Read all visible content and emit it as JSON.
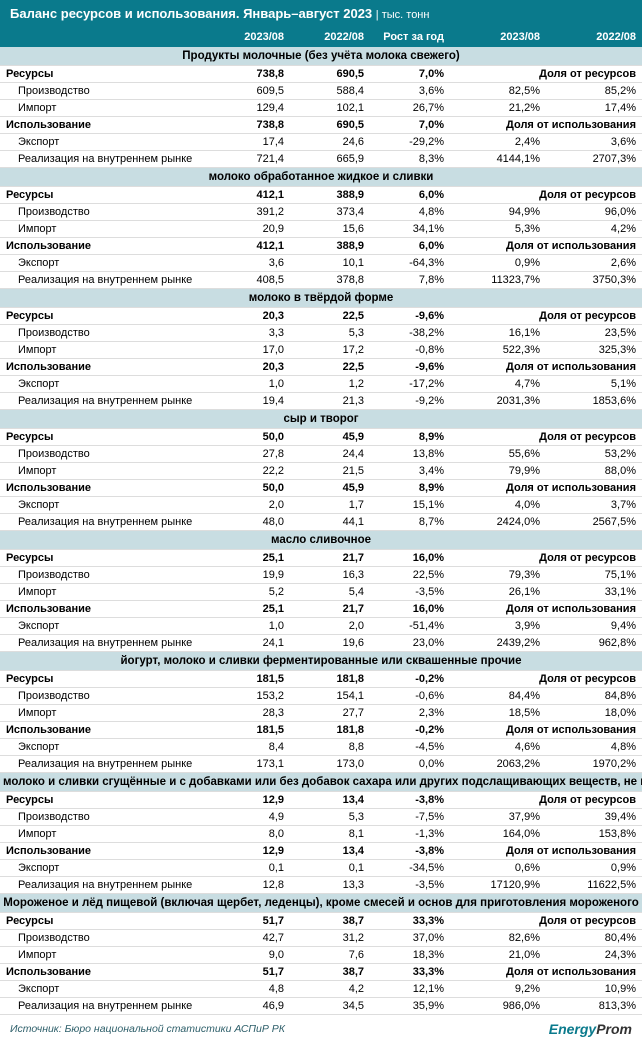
{
  "title": "Баланс ресурсов и использования. Январь–август 2023",
  "unit": "тыс. тонн",
  "cols": [
    "2023/08",
    "2022/08",
    "Рост за год",
    "2023/08",
    "2022/08"
  ],
  "share_res": "Доля от ресурсов",
  "share_use": "Доля от использования",
  "row_labels": {
    "res": "Ресурсы",
    "prod": "Производство",
    "imp": "Импорт",
    "use": "Использование",
    "exp": "Экспорт",
    "dom": "Реализация на внутреннем рынке"
  },
  "sections": [
    {
      "name": "Продукты молочные (без учёта молока свежего)",
      "res": [
        "738,8",
        "690,5",
        "7,0%"
      ],
      "prod": [
        "609,5",
        "588,4",
        "3,6%",
        "82,5%",
        "85,2%"
      ],
      "imp": [
        "129,4",
        "102,1",
        "26,7%",
        "21,2%",
        "17,4%"
      ],
      "use": [
        "738,8",
        "690,5",
        "7,0%"
      ],
      "exp": [
        "17,4",
        "24,6",
        "-29,2%",
        "2,4%",
        "3,6%"
      ],
      "dom": [
        "721,4",
        "665,9",
        "8,3%",
        "4144,1%",
        "2707,3%"
      ]
    },
    {
      "name": "молоко обработанное жидкое и сливки",
      "res": [
        "412,1",
        "388,9",
        "6,0%"
      ],
      "prod": [
        "391,2",
        "373,4",
        "4,8%",
        "94,9%",
        "96,0%"
      ],
      "imp": [
        "20,9",
        "15,6",
        "34,1%",
        "5,3%",
        "4,2%"
      ],
      "use": [
        "412,1",
        "388,9",
        "6,0%"
      ],
      "exp": [
        "3,6",
        "10,1",
        "-64,3%",
        "0,9%",
        "2,6%"
      ],
      "dom": [
        "408,5",
        "378,8",
        "7,8%",
        "11323,7%",
        "3750,3%"
      ]
    },
    {
      "name": "молоко в твёрдой форме",
      "res": [
        "20,3",
        "22,5",
        "-9,6%"
      ],
      "prod": [
        "3,3",
        "5,3",
        "-38,2%",
        "16,1%",
        "23,5%"
      ],
      "imp": [
        "17,0",
        "17,2",
        "-0,8%",
        "522,3%",
        "325,3%"
      ],
      "use": [
        "20,3",
        "22,5",
        "-9,6%"
      ],
      "exp": [
        "1,0",
        "1,2",
        "-17,2%",
        "4,7%",
        "5,1%"
      ],
      "dom": [
        "19,4",
        "21,3",
        "-9,2%",
        "2031,3%",
        "1853,6%"
      ]
    },
    {
      "name": "сыр и творог",
      "res": [
        "50,0",
        "45,9",
        "8,9%"
      ],
      "prod": [
        "27,8",
        "24,4",
        "13,8%",
        "55,6%",
        "53,2%"
      ],
      "imp": [
        "22,2",
        "21,5",
        "3,4%",
        "79,9%",
        "88,0%"
      ],
      "use": [
        "50,0",
        "45,9",
        "8,9%"
      ],
      "exp": [
        "2,0",
        "1,7",
        "15,1%",
        "4,0%",
        "3,7%"
      ],
      "dom": [
        "48,0",
        "44,1",
        "8,7%",
        "2424,0%",
        "2567,5%"
      ]
    },
    {
      "name": "масло сливочное",
      "res": [
        "25,1",
        "21,7",
        "16,0%"
      ],
      "prod": [
        "19,9",
        "16,3",
        "22,5%",
        "79,3%",
        "75,1%"
      ],
      "imp": [
        "5,2",
        "5,4",
        "-3,5%",
        "26,1%",
        "33,1%"
      ],
      "use": [
        "25,1",
        "21,7",
        "16,0%"
      ],
      "exp": [
        "1,0",
        "2,0",
        "-51,4%",
        "3,9%",
        "9,4%"
      ],
      "dom": [
        "24,1",
        "19,6",
        "23,0%",
        "2439,2%",
        "962,8%"
      ]
    },
    {
      "name": "йогурт, молоко и сливки ферментированные или сквашенные прочие",
      "res": [
        "181,5",
        "181,8",
        "-0,2%"
      ],
      "prod": [
        "153,2",
        "154,1",
        "-0,6%",
        "84,4%",
        "84,8%"
      ],
      "imp": [
        "28,3",
        "27,7",
        "2,3%",
        "18,5%",
        "18,0%"
      ],
      "use": [
        "181,5",
        "181,8",
        "-0,2%"
      ],
      "exp": [
        "8,4",
        "8,8",
        "-4,5%",
        "4,6%",
        "4,8%"
      ],
      "dom": [
        "173,1",
        "173,0",
        "0,0%",
        "2063,2%",
        "1970,2%"
      ]
    },
    {
      "name": "молоко и сливки сгущённые и с добавками или без добавок сахара или других подслащивающих веществ, не в твёрдых формах",
      "res": [
        "12,9",
        "13,4",
        "-3,8%"
      ],
      "prod": [
        "4,9",
        "5,3",
        "-7,5%",
        "37,9%",
        "39,4%"
      ],
      "imp": [
        "8,0",
        "8,1",
        "-1,3%",
        "164,0%",
        "153,8%"
      ],
      "use": [
        "12,9",
        "13,4",
        "-3,8%"
      ],
      "exp": [
        "0,1",
        "0,1",
        "-34,5%",
        "0,6%",
        "0,9%"
      ],
      "dom": [
        "12,8",
        "13,3",
        "-3,5%",
        "17120,9%",
        "11622,5%"
      ]
    },
    {
      "name": "Мороженое и лёд пищевой (включая щербет, леденцы), кроме смесей и основ для приготовления мороженого",
      "res": [
        "51,7",
        "38,7",
        "33,3%"
      ],
      "prod": [
        "42,7",
        "31,2",
        "37,0%",
        "82,6%",
        "80,4%"
      ],
      "imp": [
        "9,0",
        "7,6",
        "18,3%",
        "21,0%",
        "24,3%"
      ],
      "use": [
        "51,7",
        "38,7",
        "33,3%"
      ],
      "exp": [
        "4,8",
        "4,2",
        "12,1%",
        "9,2%",
        "10,9%"
      ],
      "dom": [
        "46,9",
        "34,5",
        "35,9%",
        "986,0%",
        "813,3%"
      ]
    }
  ],
  "source": "Источник: Бюро национальной статистики АСПиР РК",
  "brand_accent": "Energy",
  "brand_rest": "Prom",
  "colors": {
    "header_bg": "#0a7a8c",
    "section_bg": "#c8dde2"
  }
}
